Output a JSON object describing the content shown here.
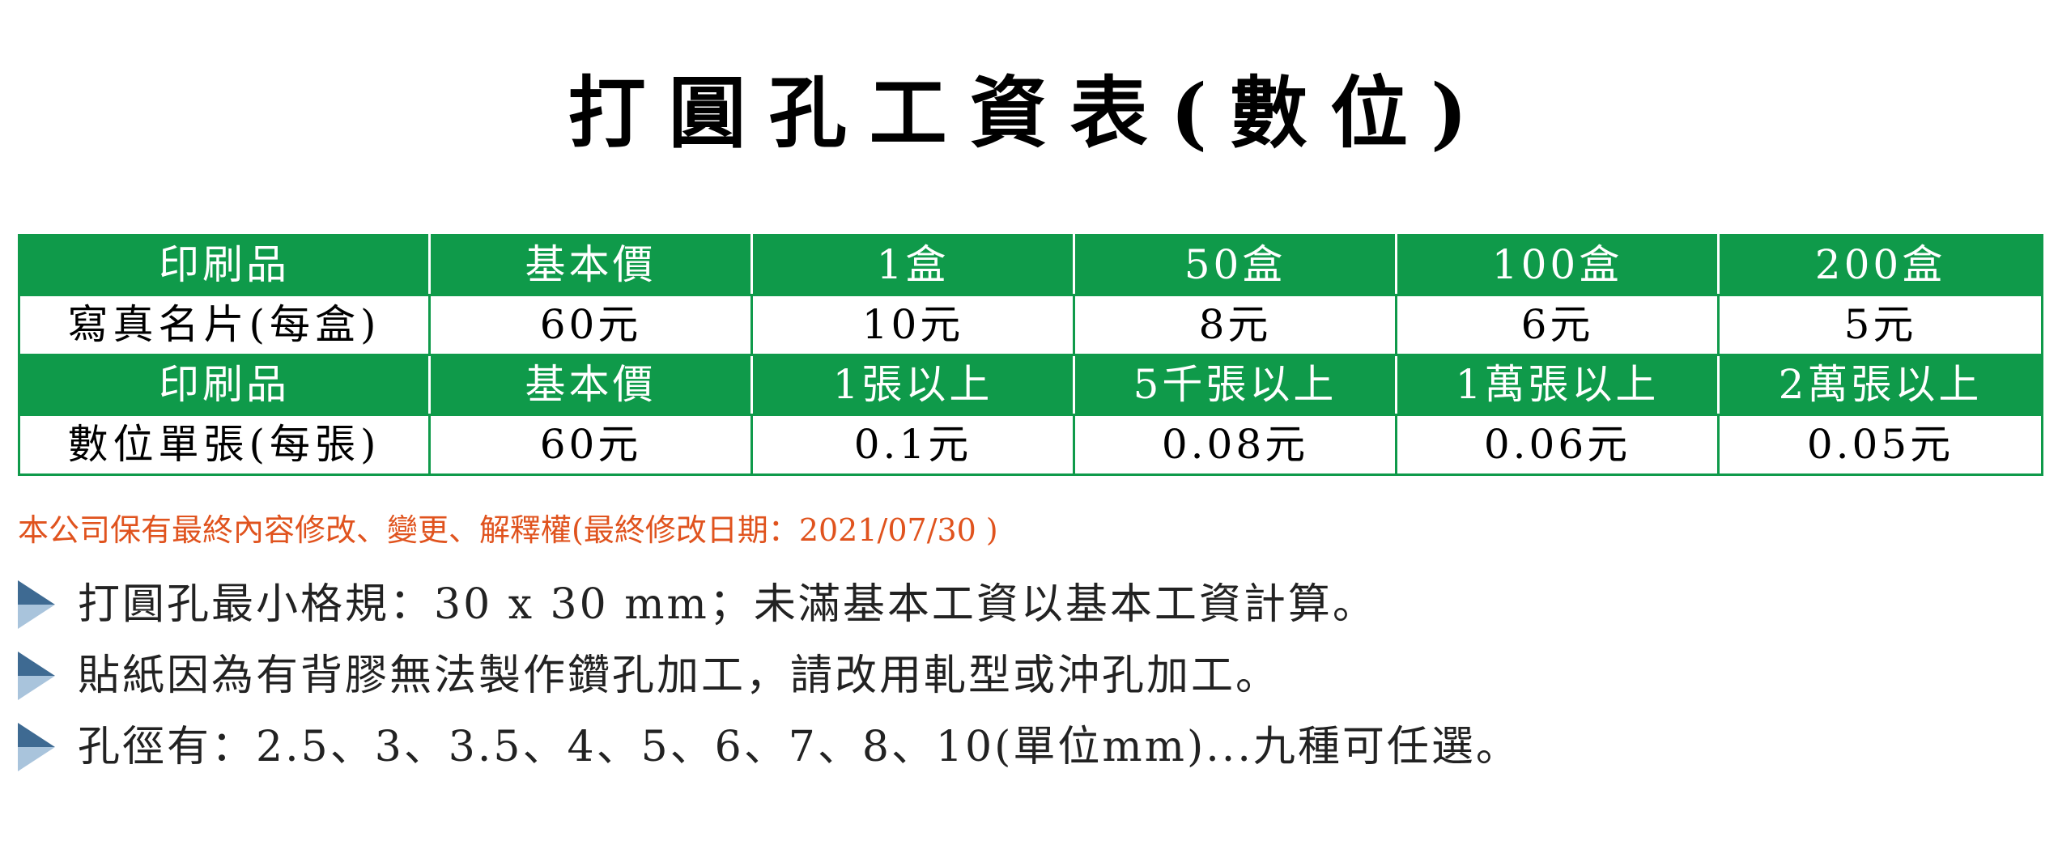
{
  "title": "打圓孔工資表(數位)",
  "colors": {
    "header_green": "#0f9a4a",
    "notice_orange": "#e0531e",
    "arrow_dark": "#3e6a92",
    "arrow_light": "#a9c4dc"
  },
  "table": {
    "rows": [
      {
        "type": "head",
        "cells": [
          "印刷品",
          "基本價",
          "1盒",
          "50盒",
          "100盒",
          "200盒"
        ]
      },
      {
        "type": "data",
        "cells": [
          "寫真名片(每盒)",
          "60元",
          "10元",
          "8元",
          "6元",
          "5元"
        ]
      },
      {
        "type": "head",
        "cells": [
          "印刷品",
          "基本價",
          "1張以上",
          "5千張以上",
          "1萬張以上",
          "2萬張以上"
        ]
      },
      {
        "type": "data",
        "cells": [
          "數位單張(每張)",
          "60元",
          "0.1元",
          "0.08元",
          "0.06元",
          "0.05元"
        ]
      }
    ]
  },
  "copyright": "本公司保有最終內容修改、變更、解釋權(最終修改日期：2021/07/30 )",
  "notes": [
    {
      "icon": "triangle-bullet-icon",
      "text": "打圓孔最小格規：30 x 30 mm；未滿基本工資以基本工資計算。"
    },
    {
      "icon": "triangle-bullet-icon",
      "text": "貼紙因為有背膠無法製作鑽孔加工，請改用軋型或沖孔加工。"
    },
    {
      "icon": "triangle-bullet-icon",
      "text": "孔徑有：2.5、3、3.5、4、5、6、7、8、10(單位mm)...九種可任選。"
    }
  ]
}
